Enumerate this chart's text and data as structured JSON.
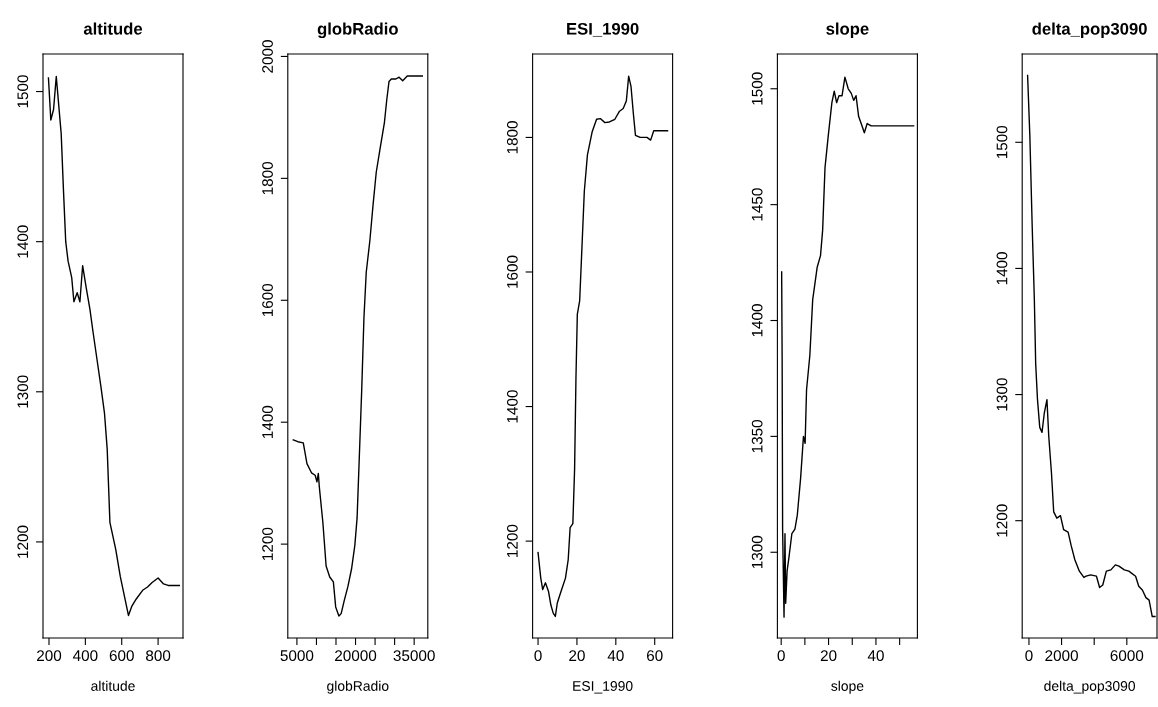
{
  "chart_data": [
    {
      "type": "line",
      "title": "altitude",
      "xlabel": "altitude",
      "xlim": [
        167,
        937
      ],
      "ylim": [
        1136,
        1525
      ],
      "xticks": [
        200,
        400,
        600,
        800
      ],
      "yticks": [
        1200,
        1300,
        1400,
        1500
      ],
      "grid": false,
      "legend": false,
      "series": [
        {
          "color": "#000000",
          "x": [
            197,
            210,
            225,
            240,
            267,
            280,
            292,
            305,
            325,
            337,
            355,
            370,
            385,
            405,
            425,
            442,
            467,
            485,
            505,
            520,
            535,
            567,
            592,
            637,
            655,
            680,
            717,
            742,
            767,
            800,
            830,
            855,
            917
          ],
          "values": [
            1509,
            1481,
            1488,
            1510,
            1472,
            1433,
            1400,
            1387,
            1376,
            1360,
            1366,
            1360,
            1384,
            1369,
            1355,
            1340,
            1319,
            1304,
            1286,
            1262,
            1213,
            1195,
            1177,
            1151,
            1157,
            1162,
            1168,
            1170,
            1173,
            1176,
            1172,
            1171,
            1171
          ]
        }
      ]
    },
    {
      "type": "line",
      "title": "globRadio",
      "xlabel": "globRadio",
      "xlim": [
        2670,
        38490
      ],
      "ylim": [
        1046,
        2004
      ],
      "xticks": [
        5000,
        {
          "value": 10000,
          "label": null
        },
        {
          "value": 15000,
          "label": null
        },
        20000,
        {
          "value": 25000,
          "label": null
        },
        {
          "value": 30000,
          "label": null
        },
        35000
      ],
      "yticks": [
        1200,
        1400,
        1600,
        1800,
        2000
      ],
      "grid": false,
      "legend": false,
      "series": [
        {
          "color": "#000000",
          "x": [
            4070,
            5230,
            6630,
            7570,
            8730,
            9670,
            10130,
            10480,
            10720,
            11650,
            12470,
            13400,
            14330,
            14920,
            15740,
            16320,
            17140,
            18070,
            19000,
            19820,
            20400,
            20990,
            21570,
            22150,
            22740,
            23670,
            24490,
            25300,
            26240,
            27400,
            27990,
            28570,
            29160,
            30320,
            31140,
            32070,
            33240,
            34410,
            37090
          ],
          "values": [
            1371,
            1368,
            1366,
            1332,
            1317,
            1313,
            1302,
            1316,
            1295,
            1235,
            1164,
            1146,
            1138,
            1097,
            1082,
            1086,
            1108,
            1131,
            1160,
            1198,
            1243,
            1347,
            1451,
            1571,
            1646,
            1698,
            1757,
            1810,
            1847,
            1892,
            1929,
            1959,
            1963,
            1963,
            1966,
            1960,
            1968,
            1968,
            1968
          ]
        }
      ]
    },
    {
      "type": "line",
      "title": "ESI_1990",
      "xlabel": "ESI_1990",
      "xlim": [
        -2.8,
        69.2
      ],
      "ylim": [
        1056,
        1924
      ],
      "xticks": [
        0,
        20,
        40,
        60
      ],
      "yticks": [
        1200,
        1400,
        1600,
        1800
      ],
      "grid": false,
      "legend": false,
      "series": [
        {
          "color": "#000000",
          "x": [
            0,
            1.4,
            2.4,
            3.8,
            5.4,
            6.6,
            7.8,
            8.9,
            9.9,
            11.8,
            14.1,
            15.5,
            16.5,
            17.9,
            18.8,
            19.5,
            20.2,
            21.4,
            22.6,
            23.8,
            25.4,
            27.8,
            30.1,
            32,
            34.4,
            36.7,
            39.5,
            41.9,
            43.8,
            45.4,
            46.6,
            47.8,
            49,
            50.1,
            52.5,
            56,
            57.9,
            59.5,
            63,
            66.6
          ],
          "values": [
            1183,
            1145,
            1128,
            1138,
            1125,
            1105,
            1093,
            1088,
            1108,
            1125,
            1145,
            1172,
            1220,
            1226,
            1307,
            1443,
            1537,
            1557,
            1638,
            1720,
            1774,
            1808,
            1827,
            1828,
            1822,
            1823,
            1827,
            1839,
            1843,
            1854,
            1891,
            1876,
            1836,
            1803,
            1800,
            1800,
            1796,
            1810,
            1810,
            1810
          ]
        }
      ]
    },
    {
      "type": "line",
      "title": "slope",
      "xlabel": "slope",
      "xlim": [
        -1.6,
        57.5
      ],
      "ylim": [
        1263,
        1515
      ],
      "xticks": [
        0,
        {
          "value": 10,
          "label": null
        },
        20,
        {
          "value": 30,
          "label": null
        },
        40,
        {
          "value": 50,
          "label": null
        }
      ],
      "yticks": [
        1300,
        1350,
        1400,
        1450,
        1500
      ],
      "grid": false,
      "legend": false,
      "series": [
        {
          "color": "#000000",
          "x": [
            0.2,
            0.4,
            0.6,
            1.2,
            1.6,
            1.9,
            2.5,
            3.3,
            4.5,
            5.8,
            6.8,
            8.2,
            9.4,
            10.1,
            10.7,
            12.1,
            13.3,
            15.2,
            16.6,
            17.5,
            18.5,
            19.9,
            21.4,
            22.4,
            23.4,
            24.4,
            25.7,
            26.9,
            28.3,
            29.6,
            30.6,
            31.6,
            32.7,
            34.1,
            35.1,
            36.3,
            38,
            46.8,
            55.9
          ],
          "values": [
            1421,
            1384,
            1310,
            1272,
            1308,
            1278,
            1292,
            1298,
            1308,
            1310,
            1316,
            1332,
            1350,
            1347,
            1370,
            1385,
            1409,
            1423,
            1428,
            1439,
            1466,
            1480,
            1494,
            1499,
            1494,
            1497,
            1497,
            1505,
            1500,
            1498,
            1495,
            1497,
            1488,
            1484,
            1481,
            1485,
            1484,
            1484,
            1484
          ]
        }
      ]
    },
    {
      "type": "line",
      "title": "delta_pop3090",
      "xlabel": "delta_pop3090",
      "xlim": [
        -414,
        7850
      ],
      "ylim": [
        1107,
        1570
      ],
      "xticks": [
        0,
        2000,
        {
          "value": 4000,
          "label": null
        },
        6000
      ],
      "yticks": [
        1200,
        1300,
        1400,
        1500
      ],
      "grid": false,
      "legend": false,
      "series": [
        {
          "color": "#000000",
          "x": [
            -83,
            55,
            193,
            331,
            414,
            524,
            662,
            800,
            938,
            1103,
            1214,
            1379,
            1517,
            1710,
            1931,
            2124,
            2400,
            2593,
            2814,
            3090,
            3366,
            3503,
            3779,
            4138,
            4331,
            4524,
            4745,
            5021,
            5297,
            5517,
            5848,
            6124,
            6538,
            6731,
            6952,
            7172,
            7366,
            7559,
            7724
          ],
          "values": [
            1553,
            1505,
            1436,
            1375,
            1324,
            1296,
            1274,
            1270,
            1285,
            1296,
            1267,
            1238,
            1207,
            1202,
            1204,
            1193,
            1191,
            1180,
            1169,
            1160,
            1155,
            1156,
            1157,
            1156,
            1147,
            1149,
            1160,
            1161,
            1165,
            1164,
            1161,
            1160,
            1156,
            1148,
            1145,
            1139,
            1137,
            1124,
            1124
          ]
        }
      ]
    }
  ]
}
